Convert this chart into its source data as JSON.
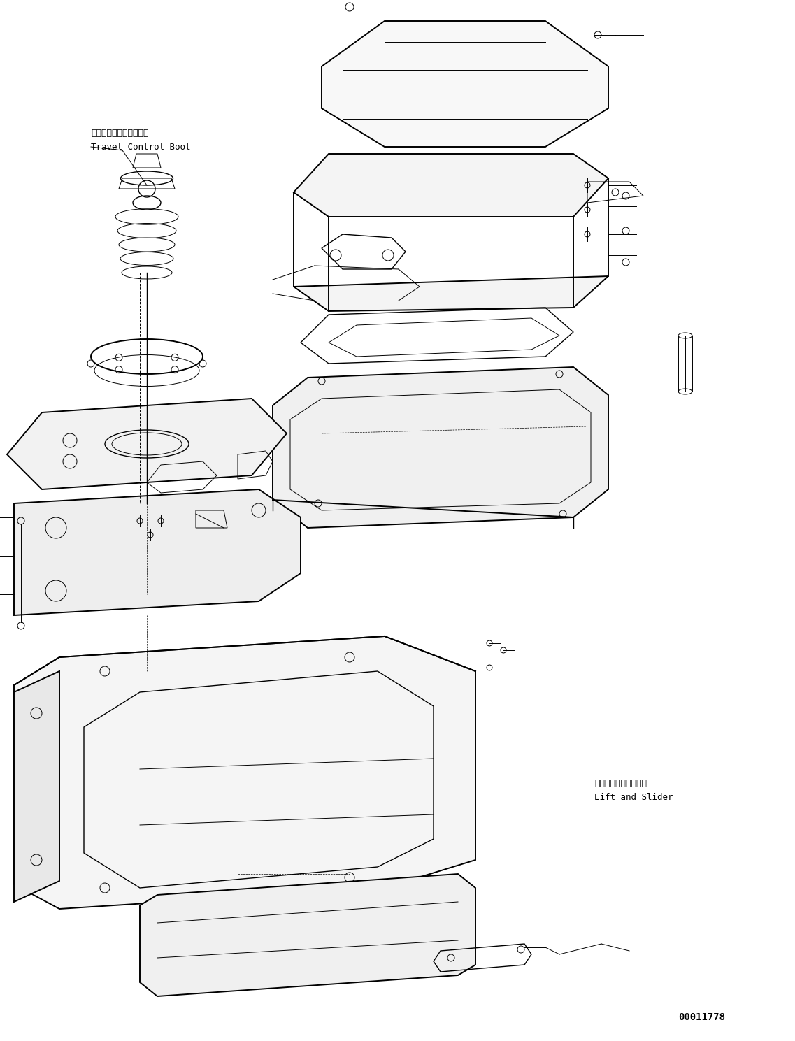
{
  "figsize": [
    11.37,
    14.89
  ],
  "dpi": 100,
  "bg_color": "#ffffff",
  "line_color": "#000000",
  "text_color": "#000000",
  "part_id": "00011778",
  "label_travel_boot_ja": "走行コントロールブート",
  "label_travel_boot_en": "Travel Control Boot",
  "label_lift_slider_ja": "リフトおよびスライダ",
  "label_lift_slider_en": "Lift and Slider",
  "font_size_small": 8,
  "font_size_medium": 9,
  "font_size_large": 11,
  "font_size_id": 10
}
